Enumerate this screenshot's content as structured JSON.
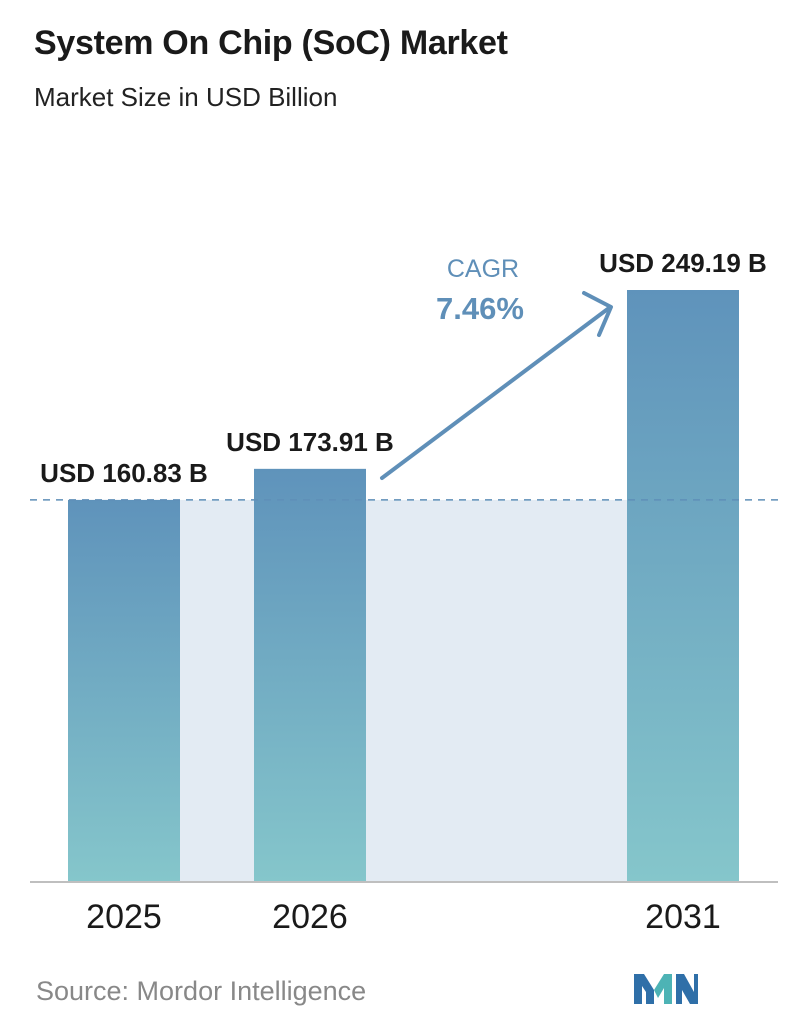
{
  "header": {
    "title": "System On Chip (SoC) Market",
    "subtitle": "Market Size in USD Billion"
  },
  "footer": {
    "source": "Source:  Mordor Intelligence",
    "logo_icon": "mordor-intelligence-logo-icon"
  },
  "colors": {
    "bar_top": "#5f93bb",
    "bar_bottom": "#85c6cb",
    "band": "#e3ebf3",
    "arrow": "#5f8fb8",
    "baseline": "#bfbfbf"
  },
  "chart_data": {
    "type": "bar",
    "title": "System On Chip (SoC) Market",
    "subtitle": "Market Size in USD Billion",
    "xlabel": "",
    "ylabel": "",
    "categories": [
      "2025",
      "2026",
      "2031"
    ],
    "values": [
      160.83,
      173.91,
      249.19
    ],
    "data_labels": [
      "USD 160.83 B",
      "USD 173.91 B",
      "USD 249.19 B"
    ],
    "ylim": [
      0,
      249.19
    ],
    "grid": false,
    "legend": "none",
    "reference_line": {
      "value": 160.83,
      "style": "dashed"
    },
    "annotation": {
      "label": "CAGR",
      "value": "7.46%"
    }
  }
}
